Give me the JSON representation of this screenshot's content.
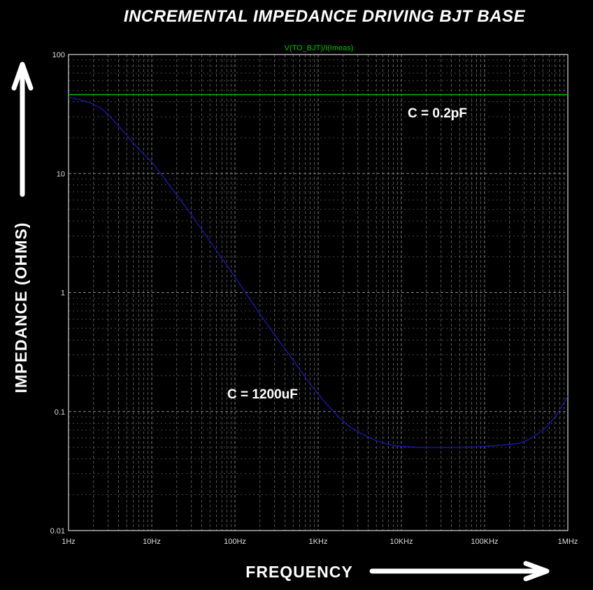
{
  "chart_data": {
    "type": "line",
    "title": "INCREMENTAL IMPEDANCE DRIVING BJT BASE",
    "trace_label": "V(TO_BJT)/I(Imeas)",
    "xlabel": "FREQUENCY",
    "ylabel": "IMPEDANCE (OHMS)",
    "x_scale": "log",
    "y_scale": "log",
    "xlim": [
      1,
      1000000
    ],
    "ylim": [
      0.01,
      100
    ],
    "x_ticks": [
      {
        "value": 1,
        "label": "1Hz"
      },
      {
        "value": 10,
        "label": "10Hz"
      },
      {
        "value": 100,
        "label": "100Hz"
      },
      {
        "value": 1000,
        "label": "1KHz"
      },
      {
        "value": 10000,
        "label": "10KHz"
      },
      {
        "value": 100000,
        "label": "100KHz"
      },
      {
        "value": 1000000,
        "label": "1MHz"
      }
    ],
    "y_ticks": [
      {
        "value": 100,
        "label": "100"
      },
      {
        "value": 10,
        "label": "10"
      },
      {
        "value": 1,
        "label": "1"
      },
      {
        "value": 0.1,
        "label": "0.1"
      },
      {
        "value": 0.01,
        "label": "0.01"
      }
    ],
    "grid": true,
    "series": [
      {
        "color": "#00c000",
        "x": [
          1,
          10,
          100,
          1000,
          10000,
          100000,
          1000000
        ],
        "y": [
          46,
          46,
          46,
          46,
          46,
          46,
          46
        ]
      },
      {
        "color": "#1a1ab0",
        "x": [
          1,
          1.5,
          2,
          2.5,
          3,
          4,
          5,
          7,
          10,
          15,
          20,
          30,
          50,
          100,
          200,
          500,
          1000,
          2000,
          3000,
          5000,
          7000,
          10000,
          20000,
          50000,
          100000,
          200000,
          300000,
          500000,
          700000,
          1000000
        ],
        "y": [
          44,
          41,
          38,
          35,
          31,
          25,
          21,
          16,
          12.5,
          8.6,
          6.6,
          4.5,
          2.7,
          1.35,
          0.66,
          0.27,
          0.14,
          0.083,
          0.068,
          0.057,
          0.053,
          0.051,
          0.05,
          0.05,
          0.051,
          0.053,
          0.056,
          0.07,
          0.09,
          0.135
        ]
      }
    ],
    "annotations": [
      "C = 0.2pF",
      "C = 1200uF"
    ]
  },
  "colors": {
    "background": "#000000",
    "grid": "#888888",
    "frame": "#ffffff",
    "arrow": "#ffffff",
    "trace_label": "#00c000"
  }
}
